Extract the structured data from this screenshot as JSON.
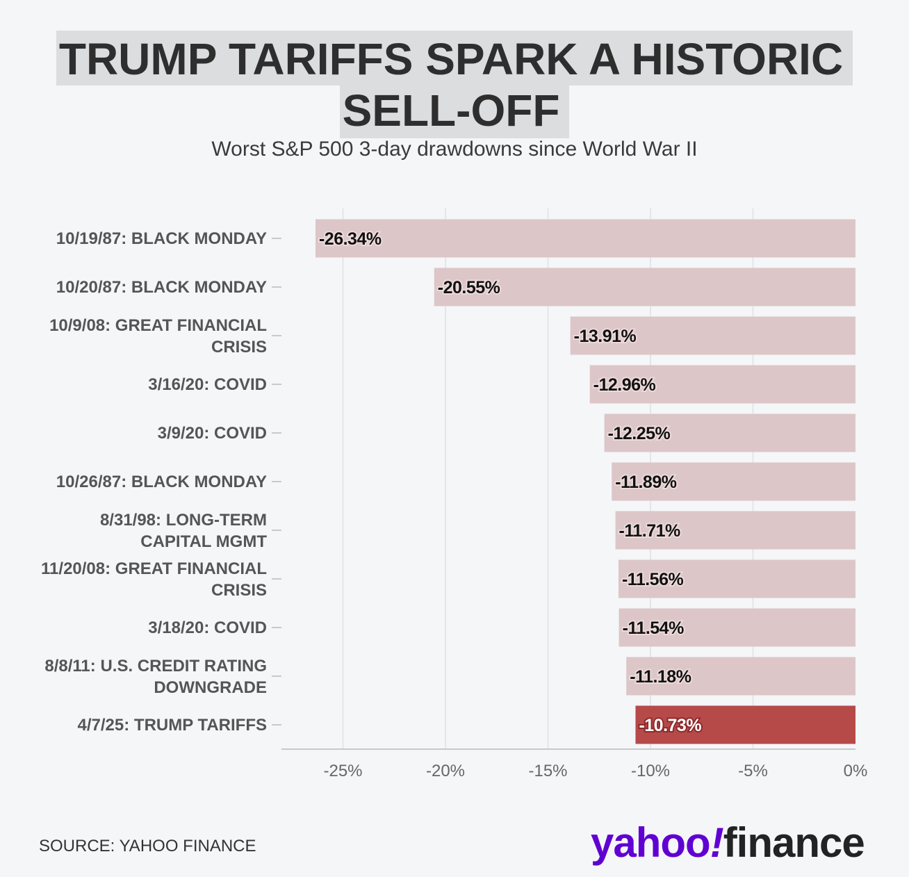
{
  "title_line1": "TRUMP TARIFFS SPARK A HISTORIC",
  "title_line2": "SELL-OFF",
  "subtitle": "Worst S&P 500 3-day drawdowns since World War II",
  "source": "SOURCE: YAHOO FINANCE",
  "logo": {
    "yahoo": "yahoo",
    "bang": "!",
    "finance": "finance"
  },
  "colors": {
    "bar": "#dcc6c8",
    "bar_highlight": "#b54a49",
    "grid": "#e4e5e8",
    "axis": "#c8c9cc",
    "label": "#555555",
    "tick_label": "#666666"
  },
  "chart_data": {
    "type": "bar",
    "orientation": "horizontal",
    "title": "TRUMP TARIFFS SPARK A HISTORIC SELL-OFF",
    "subtitle": "Worst S&P 500 3-day drawdowns since World War II",
    "xlim": [
      -28,
      0
    ],
    "xticks": [
      -25,
      -20,
      -15,
      -10,
      -5,
      0
    ],
    "xtick_labels": [
      "-25%",
      "-20%",
      "-15%",
      "-10%",
      "-5%",
      "0%"
    ],
    "grid": true,
    "categories": [
      [
        "10/19/87: BLACK MONDAY"
      ],
      [
        "10/20/87: BLACK MONDAY"
      ],
      [
        "10/9/08: GREAT FINANCIAL",
        "CRISIS"
      ],
      [
        "3/16/20: COVID"
      ],
      [
        "3/9/20: COVID"
      ],
      [
        "10/26/87: BLACK MONDAY"
      ],
      [
        "8/31/98: LONG-TERM",
        "CAPITAL MGMT"
      ],
      [
        "11/20/08: GREAT FINANCIAL",
        "CRISIS"
      ],
      [
        "3/18/20: COVID"
      ],
      [
        "8/8/11: U.S. CREDIT RATING",
        "DOWNGRADE"
      ],
      [
        "4/7/25: TRUMP TARIFFS"
      ]
    ],
    "values": [
      -26.34,
      -20.55,
      -13.91,
      -12.96,
      -12.25,
      -11.89,
      -11.71,
      -11.56,
      -11.54,
      -11.18,
      -10.73
    ],
    "value_labels": [
      "-26.34%",
      "-20.55%",
      "-13.91%",
      "-12.96%",
      "-12.25%",
      "-11.89%",
      "-11.71%",
      "-11.56%",
      "-11.54%",
      "-11.18%",
      "-10.73%"
    ],
    "highlight_index": 10
  }
}
